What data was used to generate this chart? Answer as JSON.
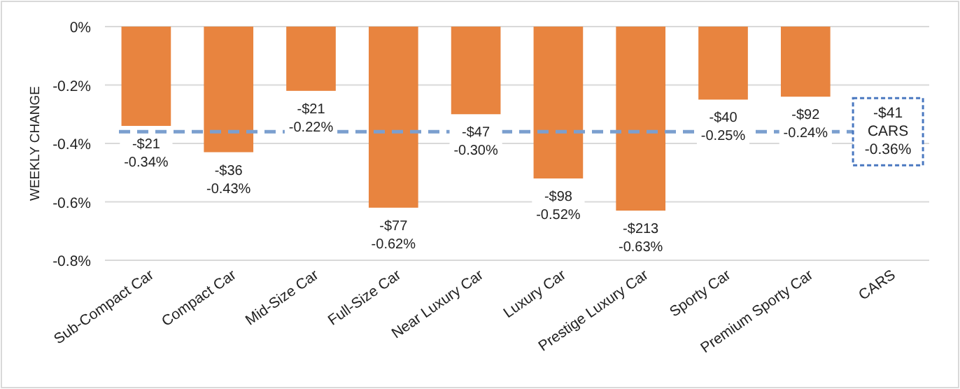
{
  "chart_data": {
    "type": "bar",
    "ylabel": "WEEKLY CHANGE",
    "categories": [
      "Sub-Compact Car",
      "Compact Car",
      "Mid-Size Car",
      "Full-Size Car",
      "Near Luxury Car",
      "Luxury Car",
      "Prestige Luxury Car",
      "Sporty Car",
      "Premium Sporty Car",
      "CARS"
    ],
    "values": [
      -0.34,
      -0.43,
      -0.22,
      -0.62,
      -0.3,
      -0.52,
      -0.63,
      -0.25,
      -0.24,
      null
    ],
    "value_labels": [
      "-$21\n-0.34%",
      "-$36\n-0.43%",
      "-$21\n-0.22%",
      "-$77\n-0.62%",
      "-$47\n-0.30%",
      "-$98\n-0.52%",
      "-$213\n-0.63%",
      "-$40\n-0.25%",
      "-$92\n-0.24%",
      null
    ],
    "color": "#e8843f",
    "ylim": [
      -0.8,
      0
    ],
    "yticks": [
      {
        "value": 0,
        "label": "0%"
      },
      {
        "value": -0.2,
        "label": "-0.2%"
      },
      {
        "value": -0.4,
        "label": "-0.4%"
      },
      {
        "value": -0.6,
        "label": "-0.6%"
      },
      {
        "value": -0.8,
        "label": "-0.8%"
      }
    ],
    "grid": "y",
    "ref_lines": [
      {
        "axis": "y",
        "value": -0.36,
        "label": "-$41\nCARS\n-0.36%",
        "color": "#7b9fcf",
        "line_style": "dashed"
      }
    ]
  }
}
